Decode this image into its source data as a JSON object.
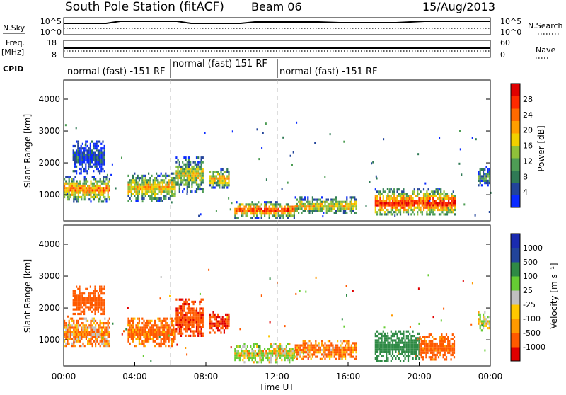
{
  "header": {
    "station": "South Pole Station (fitACF)",
    "beam": "Beam 06",
    "date": "15/Aug/2013"
  },
  "panels": {
    "nsky": {
      "label": "N.Sky",
      "ticks_left": [
        "10^5",
        "10^0"
      ],
      "right_label": "N.Search",
      "ticks_right": [
        "10^5",
        "10^0"
      ]
    },
    "freq": {
      "label": "Freq.",
      "unit": "[MHz]",
      "ticks_left": [
        "18",
        "8"
      ],
      "right_label": "Nave",
      "ticks_right": [
        "60",
        "0"
      ]
    },
    "cpid": {
      "label": "CPID",
      "segments": [
        "normal (fast) -151 RF",
        "normal (fast) 151 RF",
        "normal (fast) -151 RF"
      ]
    }
  },
  "axes": {
    "ylabel": "Slant Range [km]",
    "xlabel": "Time UT",
    "xticks": [
      "00:00",
      "04:00",
      "08:00",
      "12:00",
      "16:00",
      "20:00",
      "00:00"
    ],
    "yticks": [
      "1000",
      "2000",
      "3000",
      "4000"
    ]
  },
  "colors": {
    "power": [
      "#0a2bff",
      "#22449a",
      "#2f7a55",
      "#4e9d55",
      "#8fc23a",
      "#f0d000",
      "#ff9e00",
      "#ff6a00",
      "#ff2a00",
      "#e00000"
    ],
    "velocity": [
      "#e00000",
      "#ff5a00",
      "#ff9a00",
      "#ffc800",
      "#c0c0c0",
      "#66cc33",
      "#2f8a45",
      "#22449a",
      "#1a2bb0"
    ]
  },
  "colorbars": {
    "power": {
      "label": "Power [dB]",
      "ticks": [
        "28",
        "24",
        "20",
        "16",
        "12",
        "8",
        "4"
      ]
    },
    "velocity": {
      "label": "Velocity [m s⁻¹]",
      "ticks": [
        "1000",
        "500",
        "100",
        "25",
        "-25",
        "-100",
        "-500",
        "-1000"
      ]
    }
  },
  "chart_data": [
    {
      "type": "heatmap",
      "title": "Power",
      "xlabel": "Time UT",
      "ylabel": "Slant Range [km]",
      "xlim": [
        0,
        24
      ],
      "ylim": [
        180,
        4600
      ],
      "colorbar": {
        "label": "Power [dB]",
        "range": [
          0,
          32
        ]
      },
      "regions": [
        {
          "t0": 0.0,
          "t1": 2.6,
          "r0": 800,
          "r1": 1600,
          "level": 0.75
        },
        {
          "t0": 0.5,
          "t1": 2.3,
          "r0": 1700,
          "r1": 2700,
          "level": 0.15
        },
        {
          "t0": 3.6,
          "t1": 6.3,
          "r0": 800,
          "r1": 1700,
          "level": 0.65
        },
        {
          "t0": 6.3,
          "t1": 7.8,
          "r0": 1100,
          "r1": 2200,
          "level": 0.55
        },
        {
          "t0": 8.2,
          "t1": 9.3,
          "r0": 1200,
          "r1": 1900,
          "level": 0.6
        },
        {
          "t0": 9.6,
          "t1": 13.0,
          "r0": 300,
          "r1": 800,
          "level": 0.85
        },
        {
          "t0": 13.0,
          "t1": 16.5,
          "r0": 400,
          "r1": 950,
          "level": 0.6
        },
        {
          "t0": 17.5,
          "t1": 22.0,
          "r0": 350,
          "r1": 1200,
          "level": 0.9
        },
        {
          "t0": 23.3,
          "t1": 24.0,
          "r0": 1300,
          "r1": 1900,
          "level": 0.3
        }
      ]
    },
    {
      "type": "heatmap",
      "title": "Velocity",
      "xlabel": "Time UT",
      "ylabel": "Slant Range [km]",
      "xlim": [
        0,
        24
      ],
      "ylim": [
        180,
        4600
      ],
      "colorbar": {
        "label": "Velocity [m s⁻¹]",
        "range": [
          -1000,
          1000
        ]
      },
      "regions": [
        {
          "t0": 0.0,
          "t1": 2.6,
          "r0": 800,
          "r1": 1700,
          "value": -100
        },
        {
          "t0": 0.5,
          "t1": 2.3,
          "r0": 1800,
          "r1": 2700,
          "value": -300
        },
        {
          "t0": 3.6,
          "t1": 6.3,
          "r0": 800,
          "r1": 1700,
          "value": -200
        },
        {
          "t0": 6.3,
          "t1": 7.8,
          "r0": 1100,
          "r1": 2300,
          "value": -400
        },
        {
          "t0": 8.2,
          "t1": 9.3,
          "r0": 1200,
          "r1": 1900,
          "value": -500
        },
        {
          "t0": 9.6,
          "t1": 13.0,
          "r0": 300,
          "r1": 900,
          "value": 80
        },
        {
          "t0": 13.0,
          "t1": 16.5,
          "r0": 400,
          "r1": 1000,
          "value": -150
        },
        {
          "t0": 17.5,
          "t1": 20.0,
          "r0": 350,
          "r1": 1300,
          "value": 700
        },
        {
          "t0": 20.0,
          "t1": 22.0,
          "r0": 400,
          "r1": 1200,
          "value": -250
        },
        {
          "t0": 23.3,
          "t1": 24.0,
          "r0": 1300,
          "r1": 1900,
          "value": 100
        }
      ]
    }
  ]
}
